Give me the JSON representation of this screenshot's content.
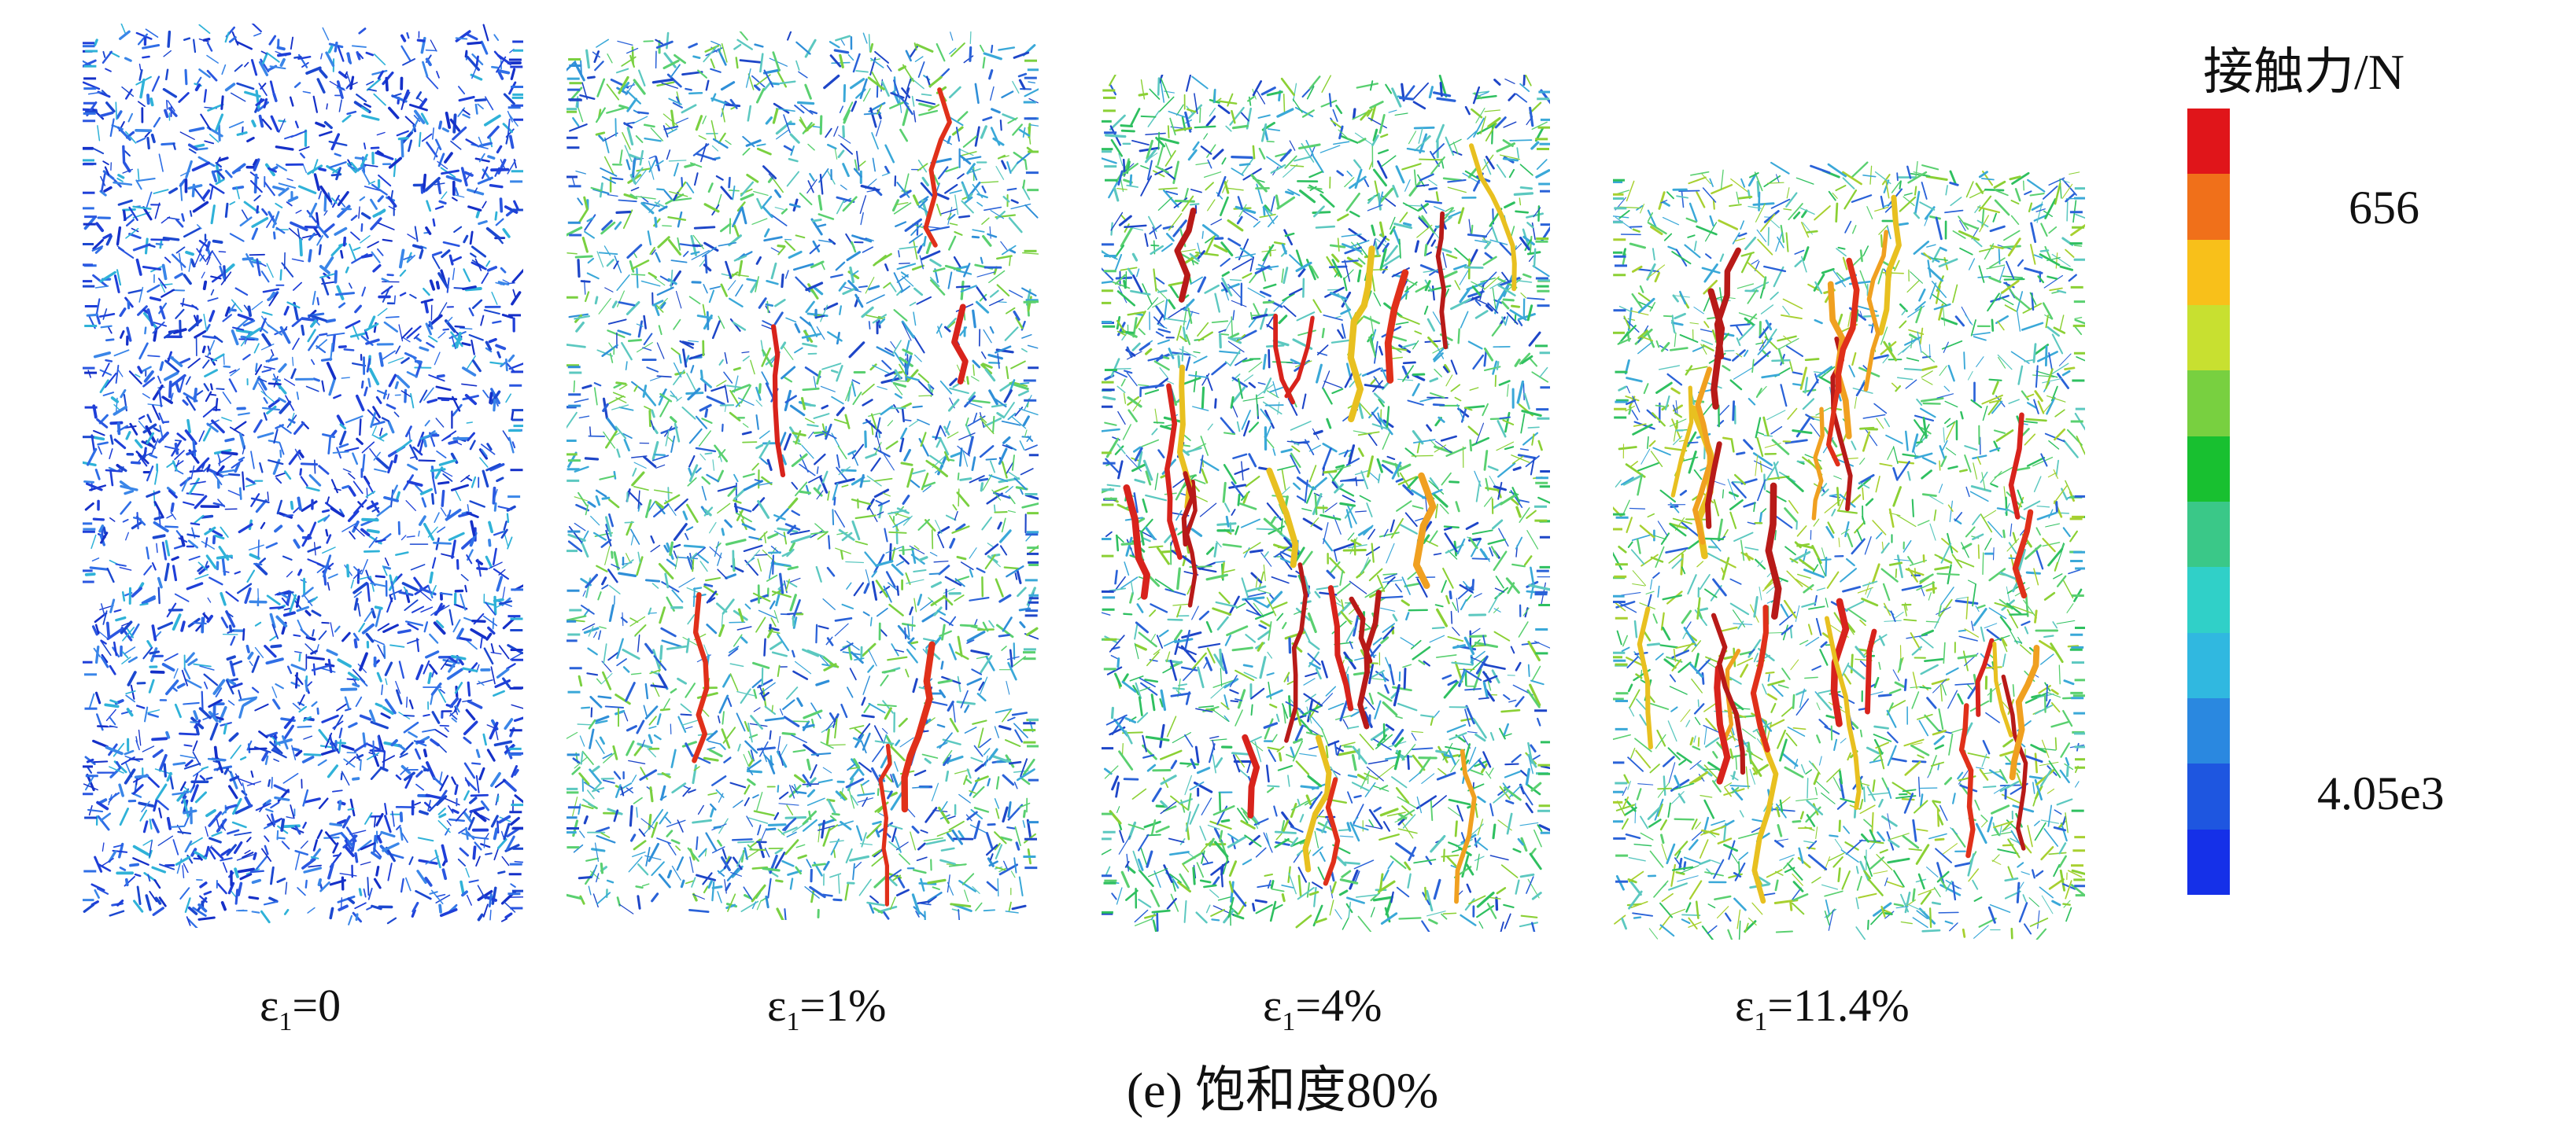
{
  "samples": [
    {
      "strain_symbol": "ε",
      "strain_sub": "1",
      "strain_value": "=0",
      "palette": [
        "#1f3fd8",
        "#2a56e0",
        "#2f6ee6",
        "#1530c8",
        "#3a86e8",
        "#1c48d0",
        "#2fb2d8"
      ]
    },
    {
      "strain_symbol": "ε",
      "strain_sub": "1",
      "strain_value": "=1%",
      "palette": [
        "#2a62d8",
        "#3aa8d8",
        "#5cc8c0",
        "#2f8fd8",
        "#5ad070",
        "#1e46c8",
        "#7ad040"
      ]
    },
    {
      "strain_symbol": "ε",
      "strain_sub": "1",
      "strain_value": "=4%",
      "palette": [
        "#2a62d8",
        "#3aa8d8",
        "#5ad070",
        "#2fc060",
        "#8bd034",
        "#1e46c8",
        "#5cc8c0"
      ]
    },
    {
      "strain_symbol": "ε",
      "strain_sub": "1",
      "strain_value": "=11.4%",
      "palette": [
        "#3aa8d8",
        "#5ad070",
        "#2fc060",
        "#8bd034",
        "#2a62d8",
        "#5cc8c0",
        "#a8d030"
      ]
    }
  ],
  "caption": "(e) 饱和度80%",
  "legend": {
    "title": "接触力/N",
    "ticks": [
      "656",
      "4.05e3"
    ],
    "colors": [
      "#e0151a",
      "#f0701a",
      "#f8c01a",
      "#c8e030",
      "#78d040",
      "#18c030",
      "#3ac888",
      "#30d0c8",
      "#30b8e0",
      "#2a88e0",
      "#1e56e0",
      "#1530e8"
    ]
  }
}
